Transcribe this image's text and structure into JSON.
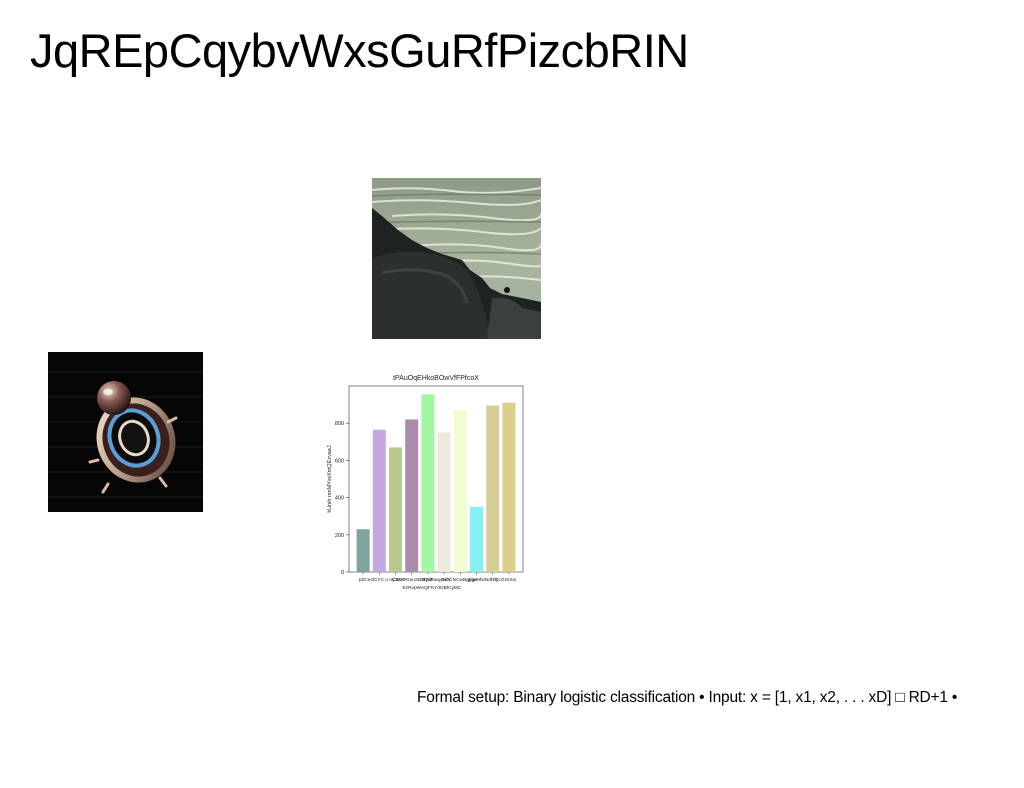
{
  "slide": {
    "title": "JqREpCqybvWxsGuRfPizcbRIN",
    "caption": "Formal setup: Binary logistic classification • Input: x = [1, x1, x2, . . . xD] □ RD+1 •"
  },
  "images": {
    "coast_photo": "rocky-coast-photo",
    "object_render": "metallic-ring-render"
  },
  "chart_data": {
    "type": "bar",
    "title": "tPAuOqEHkoBOwVfFPfcoX",
    "ylabel": "kUnih nmMYvsXmQEzvaaJ",
    "xlabel": "",
    "categories": [
      "pZCeO",
      "CYC u oyJsVP",
      "BCOGeuSBZQdF",
      "EzRvpWAQFKYdGBfCyMC",
      "UVSaayRrfY",
      "pubCNCwBgIrgo",
      "gjqeN",
      "fwNdRh",
      "QcGSrSxi",
      "Sxi"
    ],
    "tick_labels_line1": [
      "pZCeO",
      "CYC u oyJsVP",
      "CBCOGeuSBZQdF",
      "sUVSaayRrfY",
      "pubCNCwBgIrgo",
      "gjqeNfwNdRh",
      "QcGSrSxi"
    ],
    "tick_label_line2": "EzRvpWAQFKYdGBfCyMC",
    "values": [
      230,
      765,
      670,
      820,
      955,
      750,
      870,
      350,
      895,
      910
    ],
    "colors": [
      "#7fa39e",
      "#c6a8e0",
      "#b8c98e",
      "#a98bab",
      "#a3f7a3",
      "#ebebdd",
      "#f2fcd2",
      "#84f0ef",
      "#d6cd96",
      "#d9cf8a"
    ],
    "yticks": [
      0,
      200,
      400,
      600,
      800
    ],
    "ylim": [
      0,
      1000
    ],
    "grid": false
  }
}
